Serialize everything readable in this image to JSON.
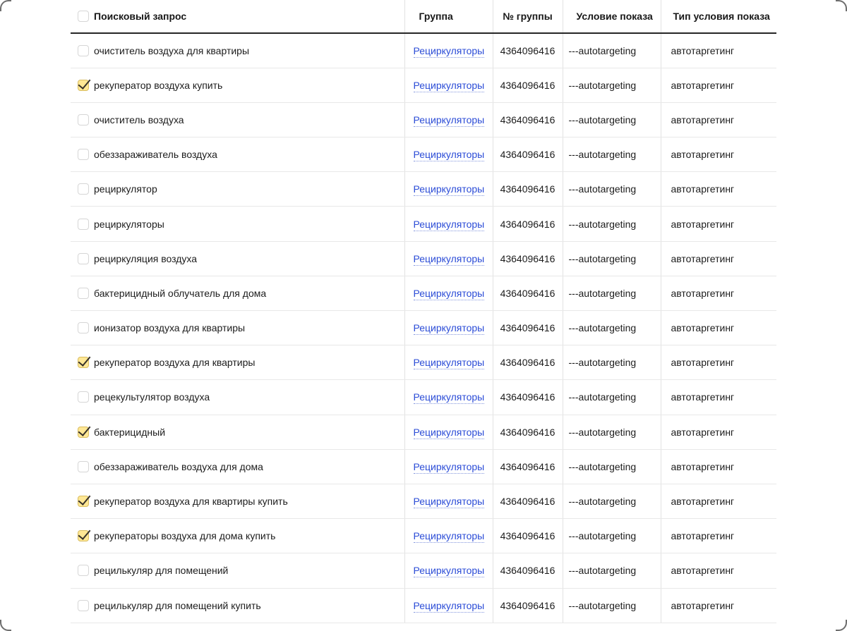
{
  "colors": {
    "link_blue": "#2b4cd7",
    "checkbox_checked_bg": "#ffe794",
    "checkbox_checked_border": "#d8bd62",
    "header_rule": "#262626",
    "row_separator": "#e8e8e8"
  },
  "table": {
    "headers": {
      "query": "Поисковый запрос",
      "group": "Группа",
      "group_id": "№ группы",
      "condition": "Условие показа",
      "condition_type": "Тип условия показа"
    },
    "rows": [
      {
        "query": "очиститель воздуха для квартиры",
        "checked": false,
        "group": "Рециркуляторы",
        "group_id": "4364096416",
        "condition": "---autotargeting",
        "condition_type": "автотаргетинг"
      },
      {
        "query": "рекуператор воздуха купить",
        "checked": true,
        "group": "Рециркуляторы",
        "group_id": "4364096416",
        "condition": "---autotargeting",
        "condition_type": "автотаргетинг"
      },
      {
        "query": "очиститель воздуха",
        "checked": false,
        "group": "Рециркуляторы",
        "group_id": "4364096416",
        "condition": "---autotargeting",
        "condition_type": "автотаргетинг"
      },
      {
        "query": "обеззараживатель воздуха",
        "checked": false,
        "group": "Рециркуляторы",
        "group_id": "4364096416",
        "condition": "---autotargeting",
        "condition_type": "автотаргетинг"
      },
      {
        "query": "рециркулятор",
        "checked": false,
        "group": "Рециркуляторы",
        "group_id": "4364096416",
        "condition": "---autotargeting",
        "condition_type": "автотаргетинг"
      },
      {
        "query": "рециркуляторы",
        "checked": false,
        "group": "Рециркуляторы",
        "group_id": "4364096416",
        "condition": "---autotargeting",
        "condition_type": "автотаргетинг"
      },
      {
        "query": "рециркуляция воздуха",
        "checked": false,
        "group": "Рециркуляторы",
        "group_id": "4364096416",
        "condition": "---autotargeting",
        "condition_type": "автотаргетинг"
      },
      {
        "query": "бактерицидный облучатель для дома",
        "checked": false,
        "group": "Рециркуляторы",
        "group_id": "4364096416",
        "condition": "---autotargeting",
        "condition_type": "автотаргетинг"
      },
      {
        "query": "ионизатор воздуха для квартиры",
        "checked": false,
        "group": "Рециркуляторы",
        "group_id": "4364096416",
        "condition": "---autotargeting",
        "condition_type": "автотаргетинг"
      },
      {
        "query": "рекуператор воздуха для квартиры",
        "checked": true,
        "group": "Рециркуляторы",
        "group_id": "4364096416",
        "condition": "---autotargeting",
        "condition_type": "автотаргетинг"
      },
      {
        "query": "рецекультулятор воздуха",
        "checked": false,
        "group": "Рециркуляторы",
        "group_id": "4364096416",
        "condition": "---autotargeting",
        "condition_type": "автотаргетинг"
      },
      {
        "query": "бактерицидный",
        "checked": true,
        "group": "Рециркуляторы",
        "group_id": "4364096416",
        "condition": "---autotargeting",
        "condition_type": "автотаргетинг"
      },
      {
        "query": "обеззараживатель воздуха для дома",
        "checked": false,
        "group": "Рециркуляторы",
        "group_id": "4364096416",
        "condition": "---autotargeting",
        "condition_type": "автотаргетинг"
      },
      {
        "query": "рекуператор воздуха для квартиры купить",
        "checked": true,
        "group": "Рециркуляторы",
        "group_id": "4364096416",
        "condition": "---autotargeting",
        "condition_type": "автотаргетинг"
      },
      {
        "query": "рекуператоры воздуха для дома купить",
        "checked": true,
        "group": "Рециркуляторы",
        "group_id": "4364096416",
        "condition": "---autotargeting",
        "condition_type": "автотаргетинг"
      },
      {
        "query": "рецилькуляр для помещений",
        "checked": false,
        "group": "Рециркуляторы",
        "group_id": "4364096416",
        "condition": "---autotargeting",
        "condition_type": "автотаргетинг"
      },
      {
        "query": "рецилькуляр для помещений купить",
        "checked": false,
        "group": "Рециркуляторы",
        "group_id": "4364096416",
        "condition": "---autotargeting",
        "condition_type": "автотаргетинг"
      }
    ]
  }
}
